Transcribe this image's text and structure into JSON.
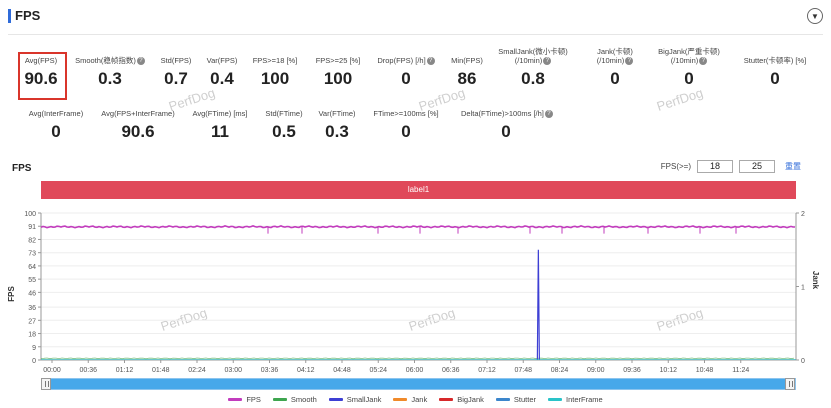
{
  "header": {
    "title": "FPS",
    "collapse_icon": "chevron-down-icon"
  },
  "stats_row1": [
    {
      "label": "Avg(FPS)",
      "value": "90.6",
      "help": false
    },
    {
      "label": "Smooth(稳帧指数)",
      "value": "0.3",
      "help": true
    },
    {
      "label": "Std(FPS)",
      "value": "0.7",
      "help": false
    },
    {
      "label": "Var(FPS)",
      "value": "0.4",
      "help": false
    },
    {
      "label": "FPS>=18 [%]",
      "value": "100",
      "help": false
    },
    {
      "label": "FPS>=25 [%]",
      "value": "100",
      "help": false
    },
    {
      "label": "Drop(FPS) [/h]",
      "value": "0",
      "help": true
    },
    {
      "label": "Min(FPS)",
      "value": "86",
      "help": false
    },
    {
      "label": "SmallJank(微小卡顿)",
      "label2": "(/10min)",
      "value": "0.8",
      "help": true
    },
    {
      "label": "Jank(卡顿)",
      "label2": "(/10min)",
      "value": "0",
      "help": true
    },
    {
      "label": "BigJank(严重卡顿)",
      "label2": "(/10min)",
      "value": "0",
      "help": true
    },
    {
      "label": "Stutter(卡顿率) [%]",
      "value": "0",
      "help": false
    }
  ],
  "stats_row2": [
    {
      "label": "Avg(InterFrame)",
      "value": "0",
      "help": false
    },
    {
      "label": "Avg(FPS+InterFrame)",
      "value": "90.6",
      "help": false
    },
    {
      "label": "Avg(FTime) [ms]",
      "value": "11",
      "help": false
    },
    {
      "label": "Std(FTime)",
      "value": "0.5",
      "help": false
    },
    {
      "label": "Var(FTime)",
      "value": "0.3",
      "help": false
    },
    {
      "label": "FTime>=100ms [%]",
      "value": "0",
      "help": false
    },
    {
      "label": "Delta(FTime)>100ms [/h]",
      "value": "0",
      "help": true
    }
  ],
  "watermark": "PerfDog",
  "chart": {
    "title": "FPS",
    "filter_label": "FPS(>=)",
    "filter_value1": "18",
    "filter_value2": "25",
    "reset_label": "重置",
    "label_bar": "label1",
    "y_left_label": "FPS",
    "y_right_label": "Jank",
    "y_left_ticks": [
      "100",
      "91",
      "82",
      "73",
      "64",
      "55",
      "46",
      "36",
      "27",
      "18",
      "9",
      "0"
    ],
    "y_right_ticks": [
      "2",
      "1",
      "0"
    ],
    "x_ticks": [
      "00:00",
      "00:36",
      "01:12",
      "01:48",
      "02:24",
      "03:00",
      "03:36",
      "04:12",
      "04:48",
      "05:24",
      "06:00",
      "06:36",
      "07:12",
      "07:48",
      "08:24",
      "09:00",
      "09:36",
      "10:12",
      "10:48",
      "11:24"
    ]
  },
  "chart_data": {
    "type": "line",
    "x_range_seconds": [
      0,
      720
    ],
    "y_left_range": [
      0,
      100
    ],
    "y_right_range": [
      0,
      2
    ],
    "series": [
      {
        "name": "FPS",
        "color": "#c23cbd",
        "axis": "left",
        "approx_value": 90.6,
        "min": 86
      },
      {
        "name": "Smooth",
        "color": "#3ea54f",
        "axis": "left",
        "approx_value": 0.3
      },
      {
        "name": "SmallJank",
        "color": "#3d3fd4",
        "axis": "right",
        "events_at": [
          "08:03"
        ],
        "event_height": 1.5
      },
      {
        "name": "Jank",
        "color": "#f08a2a",
        "axis": "right",
        "approx_value": 0
      },
      {
        "name": "BigJank",
        "color": "#d7282a",
        "axis": "right",
        "approx_value": 0
      },
      {
        "name": "Stutter",
        "color": "#3c86cc",
        "axis": "right",
        "approx_value": 0
      },
      {
        "name": "InterFrame",
        "color": "#2ac3c8",
        "axis": "left",
        "approx_value": 0
      }
    ]
  }
}
